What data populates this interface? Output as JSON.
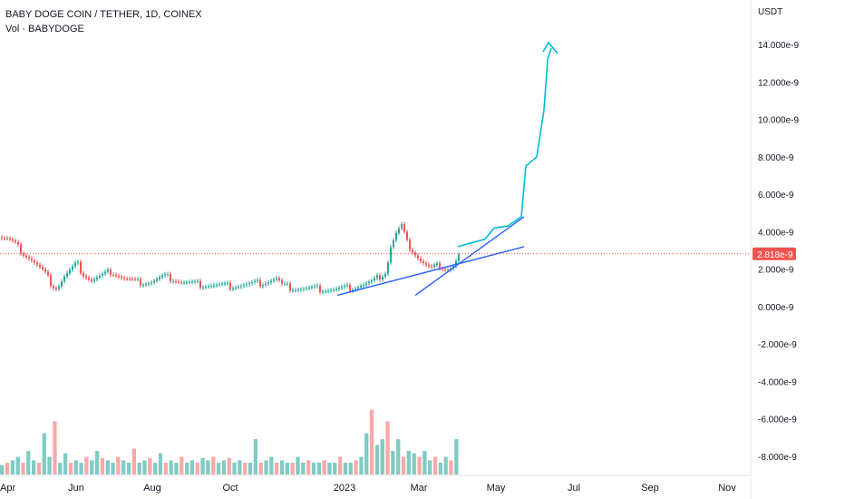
{
  "chart_data": {
    "type": "candlestick",
    "title": "BABY DOGE COIN / TETHER, 1D, COINEX",
    "subtitle": "Vol · BABYDOGE",
    "unit": "USDT",
    "y_ticks": [
      "14.000e-9",
      "12.000e-9",
      "10.000e-9",
      "8.000e-9",
      "6.000e-9",
      "4.000e-9",
      "2.000e-9",
      "0.000e-9",
      "-2.000e-9",
      "-4.000e-9",
      "-6.000e-9",
      "-8.000e-9"
    ],
    "y_tick_values": [
      14,
      12,
      10,
      8,
      6,
      4,
      2,
      0,
      -2,
      -4,
      -6,
      -8
    ],
    "ylim": [
      -9.2,
      16.6
    ],
    "x_ticks": [
      "Apr",
      "Jun",
      "Aug",
      "Oct",
      "2023",
      "Mar",
      "May",
      "Jul",
      "Sep",
      "Nov"
    ],
    "last_price": 2.818,
    "last_price_label": "2.818e-9",
    "price_path": [
      [
        0,
        3.7
      ],
      [
        8,
        3.6
      ],
      [
        16,
        3.3
      ],
      [
        24,
        2.9
      ],
      [
        32,
        2.6
      ],
      [
        40,
        2.2
      ],
      [
        48,
        1.8
      ],
      [
        56,
        1.2
      ],
      [
        62,
        1.0
      ],
      [
        70,
        1.6
      ],
      [
        78,
        2.0
      ],
      [
        84,
        2.3
      ],
      [
        90,
        1.8
      ],
      [
        100,
        1.4
      ],
      [
        110,
        1.6
      ],
      [
        122,
        1.9
      ],
      [
        135,
        1.5
      ],
      [
        150,
        1.3
      ],
      [
        165,
        1.3
      ],
      [
        180,
        1.6
      ],
      [
        190,
        1.5
      ],
      [
        200,
        1.3
      ],
      [
        215,
        1.2
      ],
      [
        230,
        1.15
      ],
      [
        250,
        1.1
      ],
      [
        270,
        1.15
      ],
      [
        290,
        1.3
      ],
      [
        305,
        1.5
      ],
      [
        310,
        1.1
      ],
      [
        330,
        0.95
      ],
      [
        350,
        0.95
      ],
      [
        370,
        0.9
      ],
      [
        390,
        1.05
      ],
      [
        410,
        1.3
      ],
      [
        425,
        1.9
      ],
      [
        430,
        3.2
      ],
      [
        436,
        3.9
      ],
      [
        442,
        4.3
      ],
      [
        448,
        3.4
      ],
      [
        456,
        2.9
      ],
      [
        464,
        2.4
      ],
      [
        474,
        2.0
      ],
      [
        484,
        2.2
      ],
      [
        494,
        2.0
      ],
      [
        500,
        2.2
      ],
      [
        506,
        2.8
      ]
    ],
    "volume_series": [
      0.08,
      0.1,
      0.12,
      0.15,
      0.1,
      0.2,
      0.12,
      0.1,
      0.35,
      0.15,
      0.45,
      0.1,
      0.18,
      0.1,
      0.12,
      0.1,
      0.15,
      0.12,
      0.2,
      0.14,
      0.12,
      0.1,
      0.15,
      0.12,
      0.1,
      0.22,
      0.1,
      0.12,
      0.14,
      0.1,
      0.18,
      0.1,
      0.12,
      0.1,
      0.15,
      0.1,
      0.12,
      0.1,
      0.14,
      0.12,
      0.15,
      0.1,
      0.12,
      0.14,
      0.1,
      0.12,
      0.1,
      0.1,
      0.3,
      0.1,
      0.12,
      0.15,
      0.1,
      0.12,
      0.1,
      0.1,
      0.15,
      0.1,
      0.12,
      0.1,
      0.1,
      0.12,
      0.1,
      0.1,
      0.15,
      0.1,
      0.1,
      0.12,
      0.15,
      0.35,
      0.55,
      0.25,
      0.3,
      0.45,
      0.2,
      0.3,
      0.15,
      0.2,
      0.18,
      0.15,
      0.2,
      0.12,
      0.15,
      0.1,
      0.15,
      0.12,
      0.3
    ],
    "annotations": [
      {
        "type": "trendline",
        "points": [
          [
            372,
            0.6
          ],
          [
            578,
            3.2
          ]
        ]
      },
      {
        "type": "trendline",
        "points": [
          [
            458,
            0.6
          ],
          [
            578,
            4.8
          ]
        ]
      },
      {
        "type": "arrow_path",
        "points": [
          [
            505,
            3.2
          ],
          [
            520,
            3.4
          ],
          [
            535,
            3.6
          ],
          [
            545,
            4.2
          ],
          [
            560,
            4.3
          ],
          [
            575,
            4.8
          ],
          [
            580,
            7.5
          ],
          [
            592,
            8.0
          ],
          [
            600,
            10.5
          ],
          [
            604,
            13.2
          ],
          [
            608,
            13.8
          ]
        ]
      }
    ]
  },
  "colors": {
    "up": "#26a69a",
    "down": "#ef5350",
    "volume_up": "#80cbc4",
    "volume_down": "#f7a9a7",
    "trendline": "#2962ff",
    "arrow": "#00bcd4",
    "price_line": "#ef5350",
    "price_label_bg": "#ef5350",
    "grid": "#f0f3fa"
  }
}
